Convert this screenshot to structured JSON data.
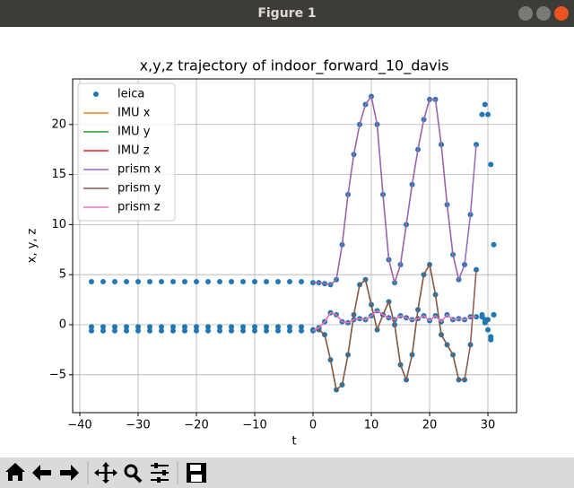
{
  "window_title": "Figure 1",
  "chart_data": {
    "type": "line",
    "title": "x,y,z trajectory of indoor_forward_10_davis",
    "x_label": "t",
    "y_label": "x, y, z",
    "xlim": [
      -41.23,
      34.92
    ],
    "ylim": [
      -8.78,
      24.55
    ],
    "xticks": [
      {
        "value": -40,
        "label": "−40"
      },
      {
        "value": -30,
        "label": "−30"
      },
      {
        "value": -20,
        "label": "−20"
      },
      {
        "value": -10,
        "label": "−10"
      },
      0,
      10,
      20,
      30
    ],
    "yticks": [
      {
        "value": -5,
        "label": "−5"
      },
      0,
      5,
      10,
      15,
      20
    ],
    "grid": true,
    "legend": "upper left",
    "x": [
      0,
      1,
      2,
      3,
      4,
      5,
      6,
      7,
      8,
      9,
      10,
      11,
      12,
      13,
      14,
      15,
      16,
      17,
      18,
      19,
      20,
      21,
      22,
      23,
      24,
      25,
      26,
      27,
      28
    ],
    "scatter": {
      "name": "leica",
      "color": "#1f77b4",
      "x": [
        -38,
        -36,
        -34,
        -32,
        -30,
        -28,
        -26,
        -24,
        -22,
        -20,
        -18,
        -16,
        -14,
        -12,
        -10,
        -8,
        -6,
        -4,
        -2,
        -38,
        -36,
        -34,
        -32,
        -30,
        -28,
        -26,
        -24,
        -22,
        -20,
        -18,
        -16,
        -14,
        -12,
        -10,
        -8,
        -6,
        -4,
        -2,
        -38,
        -36,
        -34,
        -32,
        -30,
        -28,
        -26,
        -24,
        -22,
        -20,
        -18,
        -16,
        -14,
        -12,
        -10,
        -8,
        -6,
        -4,
        -2,
        0,
        1,
        2,
        3,
        4,
        5,
        6,
        7,
        8,
        9,
        10,
        11,
        12,
        13,
        14,
        15,
        16,
        17,
        18,
        19,
        20,
        21,
        22,
        23,
        24,
        25,
        26,
        27,
        28,
        0,
        1,
        2,
        3,
        4,
        5,
        6,
        7,
        8,
        9,
        10,
        11,
        12,
        13,
        14,
        15,
        16,
        17,
        18,
        19,
        20,
        21,
        22,
        23,
        24,
        25,
        26,
        27,
        28,
        0,
        1,
        2,
        3,
        4,
        5,
        6,
        7,
        8,
        9,
        10,
        11,
        12,
        13,
        14,
        15,
        16,
        17,
        18,
        19,
        20,
        21,
        22,
        23,
        24,
        25,
        26,
        27,
        28,
        29,
        29.5,
        30,
        30.5,
        31,
        29,
        29.5,
        30,
        30.5,
        31,
        29,
        29.5,
        30,
        30.5,
        31
      ],
      "values": [
        4.3,
        4.3,
        4.3,
        4.3,
        4.3,
        4.3,
        4.3,
        4.3,
        4.3,
        4.3,
        4.3,
        4.3,
        4.3,
        4.3,
        4.3,
        4.3,
        4.3,
        4.3,
        4.3,
        -0.2,
        -0.2,
        -0.2,
        -0.2,
        -0.2,
        -0.2,
        -0.2,
        -0.2,
        -0.2,
        -0.2,
        -0.2,
        -0.2,
        -0.2,
        -0.2,
        -0.2,
        -0.2,
        -0.2,
        -0.2,
        -0.2,
        -0.6,
        -0.6,
        -0.6,
        -0.6,
        -0.6,
        -0.6,
        -0.6,
        -0.6,
        -0.6,
        -0.6,
        -0.6,
        -0.6,
        -0.6,
        -0.6,
        -0.6,
        -0.6,
        -0.6,
        -0.6,
        -0.6,
        4.2,
        4.2,
        4.1,
        4.0,
        4.5,
        8,
        13,
        17,
        20,
        22,
        22.8,
        20,
        13,
        6.5,
        4.2,
        6,
        10,
        14,
        17.5,
        20.5,
        22.5,
        22.5,
        18,
        12,
        7,
        4.5,
        6,
        11,
        18,
        -0.5,
        -0.5,
        -1,
        -3.5,
        -6.5,
        -6,
        -3,
        1,
        4,
        4.5,
        2,
        -0.5,
        1,
        2.3,
        0,
        -4,
        -5.5,
        -3,
        1.5,
        5,
        6,
        3,
        -1,
        -2,
        -3,
        -5.5,
        -5.5,
        -2,
        5.5,
        -0.6,
        -0.3,
        0.3,
        1.2,
        1.0,
        0.3,
        0.2,
        0.5,
        0.6,
        0.5,
        0.9,
        1.4,
        1.0,
        0.7,
        0.5,
        0.9,
        0.7,
        0.5,
        0.6,
        0.9,
        0.4,
        0.9,
        0.3,
        1.0,
        0.5,
        0.6,
        0.5,
        0.8,
        0.8,
        21,
        22,
        21,
        16,
        8,
        0.8,
        0.2,
        0.5,
        -1.5,
        1.0,
        1.0,
        0.5,
        -0.5,
        -1.2,
        1.0
      ]
    },
    "series": [
      {
        "name": "IMU x",
        "color": "#ff7f0e",
        "values": [
          4.2,
          4.2,
          4.1,
          4.0,
          4.5,
          8,
          13,
          17,
          20,
          22,
          22.8,
          20,
          13,
          6.5,
          4.2,
          6,
          10,
          14,
          17.5,
          20.5,
          22.5,
          22.5,
          18,
          12,
          7,
          4.5,
          null,
          null,
          null
        ]
      },
      {
        "name": "IMU y",
        "color": "#2ca02c",
        "values": [
          -0.5,
          -0.5,
          -1,
          -3.5,
          -6.5,
          -6,
          -3,
          1,
          4,
          4.5,
          2,
          -0.5,
          1,
          2.3,
          0,
          -4,
          -5.5,
          -3,
          1.5,
          5,
          6,
          3,
          -1,
          -2,
          -3,
          -5.5,
          null,
          null,
          null
        ]
      },
      {
        "name": "IMU z",
        "color": "#d62728",
        "values": [
          -0.6,
          -0.3,
          0.3,
          1.2,
          1.0,
          0.3,
          0.2,
          0.5,
          0.6,
          0.5,
          0.9,
          1.4,
          1.0,
          0.7,
          0.5,
          0.9,
          0.7,
          0.5,
          0.6,
          0.9,
          0.4,
          0.9,
          0.3,
          1.0,
          0.5,
          0.6,
          null,
          null,
          null
        ]
      },
      {
        "name": "prism x",
        "color": "#9467bd",
        "values": [
          4.2,
          4.2,
          4.1,
          4.0,
          4.5,
          8,
          13,
          17,
          20,
          22,
          22.8,
          20,
          13,
          6.5,
          4.2,
          6,
          10,
          14,
          17.5,
          20.5,
          22.5,
          22.5,
          18,
          12,
          7,
          4.5,
          6,
          11,
          18
        ]
      },
      {
        "name": "prism y",
        "color": "#8c564b",
        "values": [
          -0.5,
          -0.5,
          -1,
          -3.5,
          -6.5,
          -6,
          -3,
          1,
          4,
          4.5,
          2,
          -0.5,
          1,
          2.3,
          0,
          -4,
          -5.5,
          -3,
          1.5,
          5,
          6,
          3,
          -1,
          -2,
          -3,
          -5.5,
          -5.5,
          -2,
          5.5
        ]
      },
      {
        "name": "prism z",
        "color": "#e377c2",
        "values": [
          -0.6,
          -0.3,
          0.3,
          1.2,
          1.0,
          0.3,
          0.2,
          0.5,
          0.6,
          0.5,
          0.9,
          1.4,
          1.0,
          0.7,
          0.5,
          0.9,
          0.7,
          0.5,
          0.6,
          0.9,
          0.4,
          0.9,
          0.3,
          1.0,
          0.5,
          0.6,
          0.5,
          0.8,
          0.8
        ]
      }
    ]
  }
}
